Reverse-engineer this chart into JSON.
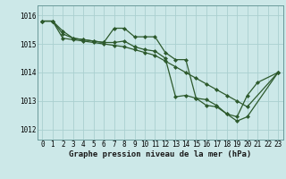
{
  "title": "Graphe pression niveau de la mer (hPa)",
  "bg_color": "#cce8e8",
  "grid_color": "#aad0d0",
  "line_color": "#2d5a2d",
  "series": [
    {
      "x": [
        0,
        1,
        2,
        3,
        4,
        5,
        6,
        7,
        8,
        9,
        10,
        11,
        12,
        13,
        14,
        15,
        16,
        17,
        18,
        19,
        20,
        21,
        23
      ],
      "y": [
        1015.8,
        1015.8,
        1015.45,
        1015.2,
        1015.15,
        1015.1,
        1015.05,
        1015.05,
        1015.1,
        1014.9,
        1014.8,
        1014.75,
        1014.5,
        1013.15,
        1013.2,
        1013.1,
        1012.85,
        1012.8,
        1012.55,
        1012.45,
        1013.2,
        1013.65,
        1014.0
      ]
    },
    {
      "x": [
        0,
        1,
        2,
        3,
        4,
        5,
        6,
        7,
        8,
        9,
        10,
        11,
        12,
        13,
        14,
        15,
        16,
        17,
        18,
        19,
        20,
        23
      ],
      "y": [
        1015.8,
        1015.8,
        1015.35,
        1015.2,
        1015.15,
        1015.1,
        1015.05,
        1015.55,
        1015.55,
        1015.25,
        1015.25,
        1015.25,
        1014.7,
        1014.45,
        1014.45,
        1013.1,
        1013.05,
        1012.85,
        1012.55,
        1012.3,
        1012.45,
        1014.0
      ]
    },
    {
      "x": [
        0,
        1,
        2,
        3,
        4,
        5,
        6,
        7,
        8,
        9,
        10,
        11,
        12,
        13,
        14,
        15,
        16,
        17,
        18,
        19,
        20,
        23
      ],
      "y": [
        1015.8,
        1015.8,
        1015.2,
        1015.15,
        1015.1,
        1015.05,
        1015.0,
        1014.95,
        1014.9,
        1014.8,
        1014.7,
        1014.6,
        1014.4,
        1014.2,
        1014.0,
        1013.8,
        1013.6,
        1013.4,
        1013.2,
        1013.0,
        1012.8,
        1014.0
      ]
    }
  ],
  "xlim": [
    -0.5,
    23.5
  ],
  "ylim": [
    1011.65,
    1016.35
  ],
  "yticks": [
    1012,
    1013,
    1014,
    1015,
    1016
  ],
  "xticks": [
    0,
    1,
    2,
    3,
    4,
    5,
    6,
    7,
    8,
    9,
    10,
    11,
    12,
    13,
    14,
    15,
    16,
    17,
    18,
    19,
    20,
    21,
    22,
    23
  ],
  "tick_fontsize": 5.5,
  "marker": "D",
  "marker_size": 2.0,
  "linewidth": 0.9
}
